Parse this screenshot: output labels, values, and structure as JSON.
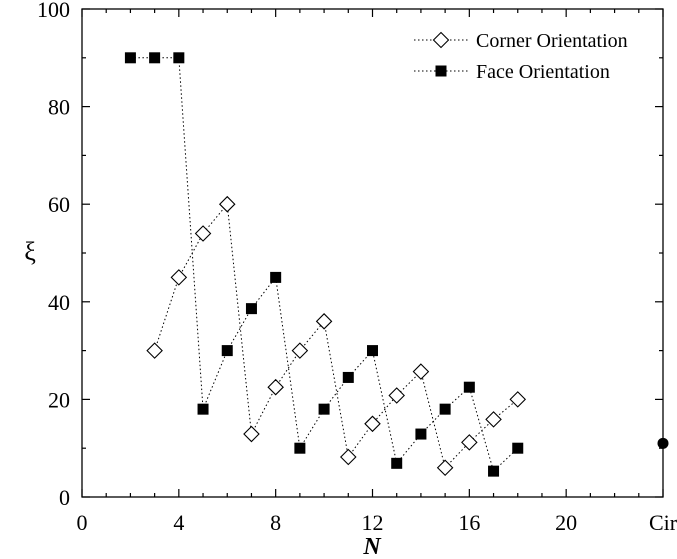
{
  "chart_data": {
    "type": "scatter",
    "xlabel": "N",
    "ylabel": "ξ",
    "xlim": [
      0,
      24
    ],
    "ylim": [
      0,
      100
    ],
    "x_ticks": [
      "0",
      "4",
      "8",
      "12",
      "16",
      "20",
      "Cir"
    ],
    "y_ticks": [
      "0",
      "20",
      "40",
      "60",
      "80",
      "100"
    ],
    "grid": false,
    "legend_position": "top-right",
    "series": [
      {
        "name": "Corner Orientation",
        "marker": "open-diamond",
        "line": "dotted",
        "x": [
          3,
          4,
          5,
          6,
          7,
          8,
          9,
          10,
          11,
          12,
          13,
          14,
          15,
          16,
          17,
          18
        ],
        "y": [
          30,
          45,
          54,
          60,
          12.9,
          22.5,
          30,
          36,
          8.2,
          15,
          20.8,
          25.7,
          6,
          11.2,
          15.9,
          20
        ]
      },
      {
        "name": "Face Orientation",
        "marker": "filled-square",
        "line": "dotted",
        "x": [
          2,
          3,
          4,
          5,
          6,
          7,
          8,
          9,
          10,
          11,
          12,
          13,
          14,
          15,
          16,
          17,
          18
        ],
        "y": [
          90,
          90,
          90,
          18,
          30,
          38.6,
          45,
          10,
          18,
          24.5,
          30,
          6.9,
          12.9,
          18,
          22.5,
          5.3,
          10
        ]
      },
      {
        "name": "",
        "marker": "filled-circle",
        "line": "none",
        "x": [
          "Cir"
        ],
        "y": [
          11
        ]
      }
    ]
  }
}
